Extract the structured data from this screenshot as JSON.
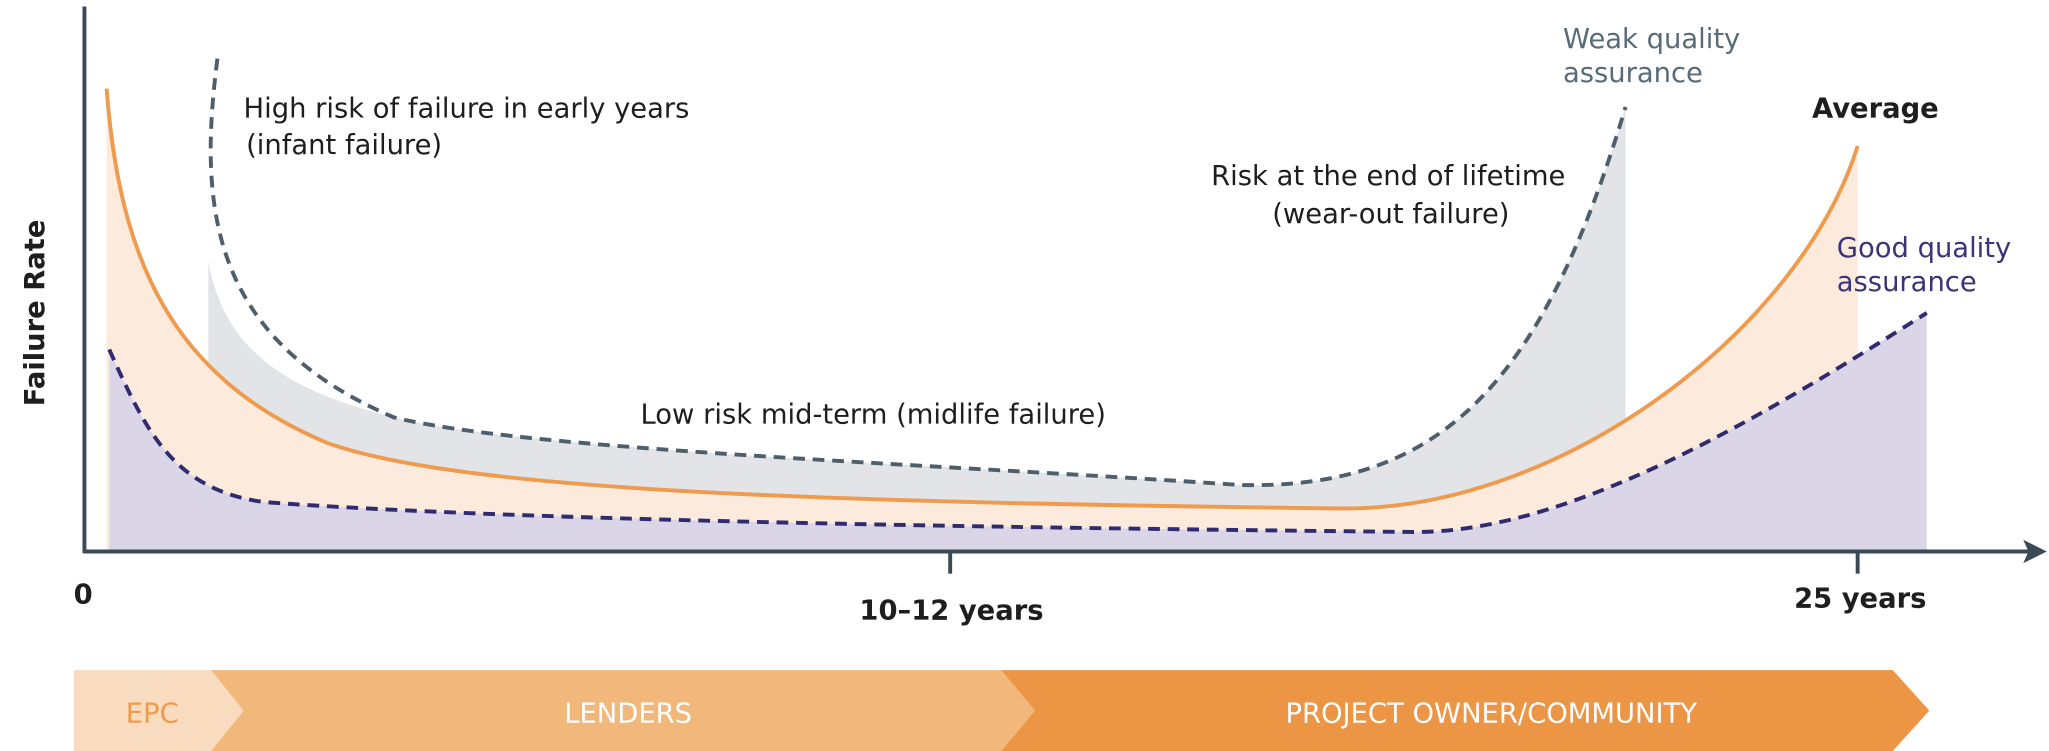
{
  "axis": {
    "y_label": "Failure Rate",
    "x_labels": [
      "0",
      "10–12 years",
      "25 years"
    ]
  },
  "annotations": {
    "infant": [
      "High risk of failure in early years",
      "(infant failure)"
    ],
    "midlife": [
      "Low risk mid-term (midlife failure)"
    ],
    "wearout": [
      "Risk at the end of lifetime",
      "(wear-out failure)"
    ]
  },
  "legend": {
    "weak": [
      "Weak quality",
      "assurance"
    ],
    "average": [
      "Average"
    ],
    "good": [
      "Good quality",
      "assurance"
    ]
  },
  "phases": [
    "EPC",
    "LENDERS",
    "PROJECT OWNER/COMMUNITY"
  ]
}
